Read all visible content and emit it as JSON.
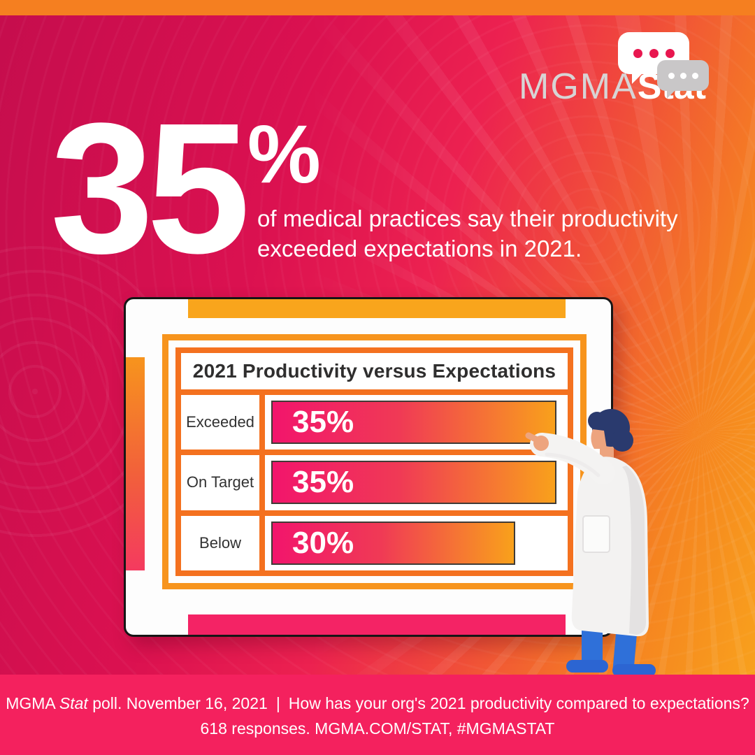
{
  "brand": {
    "name_light": "MGMA",
    "name_bold": "Stat"
  },
  "headline": {
    "stat_value": "35",
    "stat_unit": "%",
    "line1": "of medical practices say their productivity",
    "line2": "exceeded expectations in 2021."
  },
  "chart_data": {
    "type": "bar",
    "orientation": "horizontal",
    "title": "2021 Productivity versus Expectations",
    "categories": [
      "Exceeded",
      "On Target",
      "Below"
    ],
    "values": [
      35,
      35,
      30
    ],
    "value_labels": [
      "35%",
      "35%",
      "30%"
    ],
    "xlim": [
      0,
      36.4
    ],
    "grid": false,
    "legend": "none",
    "bar_gradient": [
      "#F2156C",
      "#F9A11B"
    ]
  },
  "footer": {
    "line1_brand": "MGMA",
    "line1_stat_italic": "Stat",
    "line1_rest": "poll. November 16, 2021",
    "separator": "|",
    "question": "How has your org's 2021 productivity compared to expectations?",
    "line2": "618 responses. MGMA.COM/STAT, #MGMASTAT"
  },
  "colors": {
    "background_left": "#C50D4D",
    "background_right": "#F9A61C",
    "top_strip": "#F57F20",
    "footer_bar": "#F4215E",
    "board_top_tab": "#F9A51C",
    "board_bottom_tab": "#F42365",
    "frame_outer": "#F7941D",
    "frame_inner": "#F4711F",
    "bar_border": "#403B36",
    "logo_gray": "#D7D4D5",
    "bubble_dots_pink": "#E8174F",
    "bubble_gray": "#C9C7C8",
    "coat_white": "#F3F2F1",
    "pants_blue": "#2F70D9",
    "hair_navy": "#2A3A6E"
  }
}
